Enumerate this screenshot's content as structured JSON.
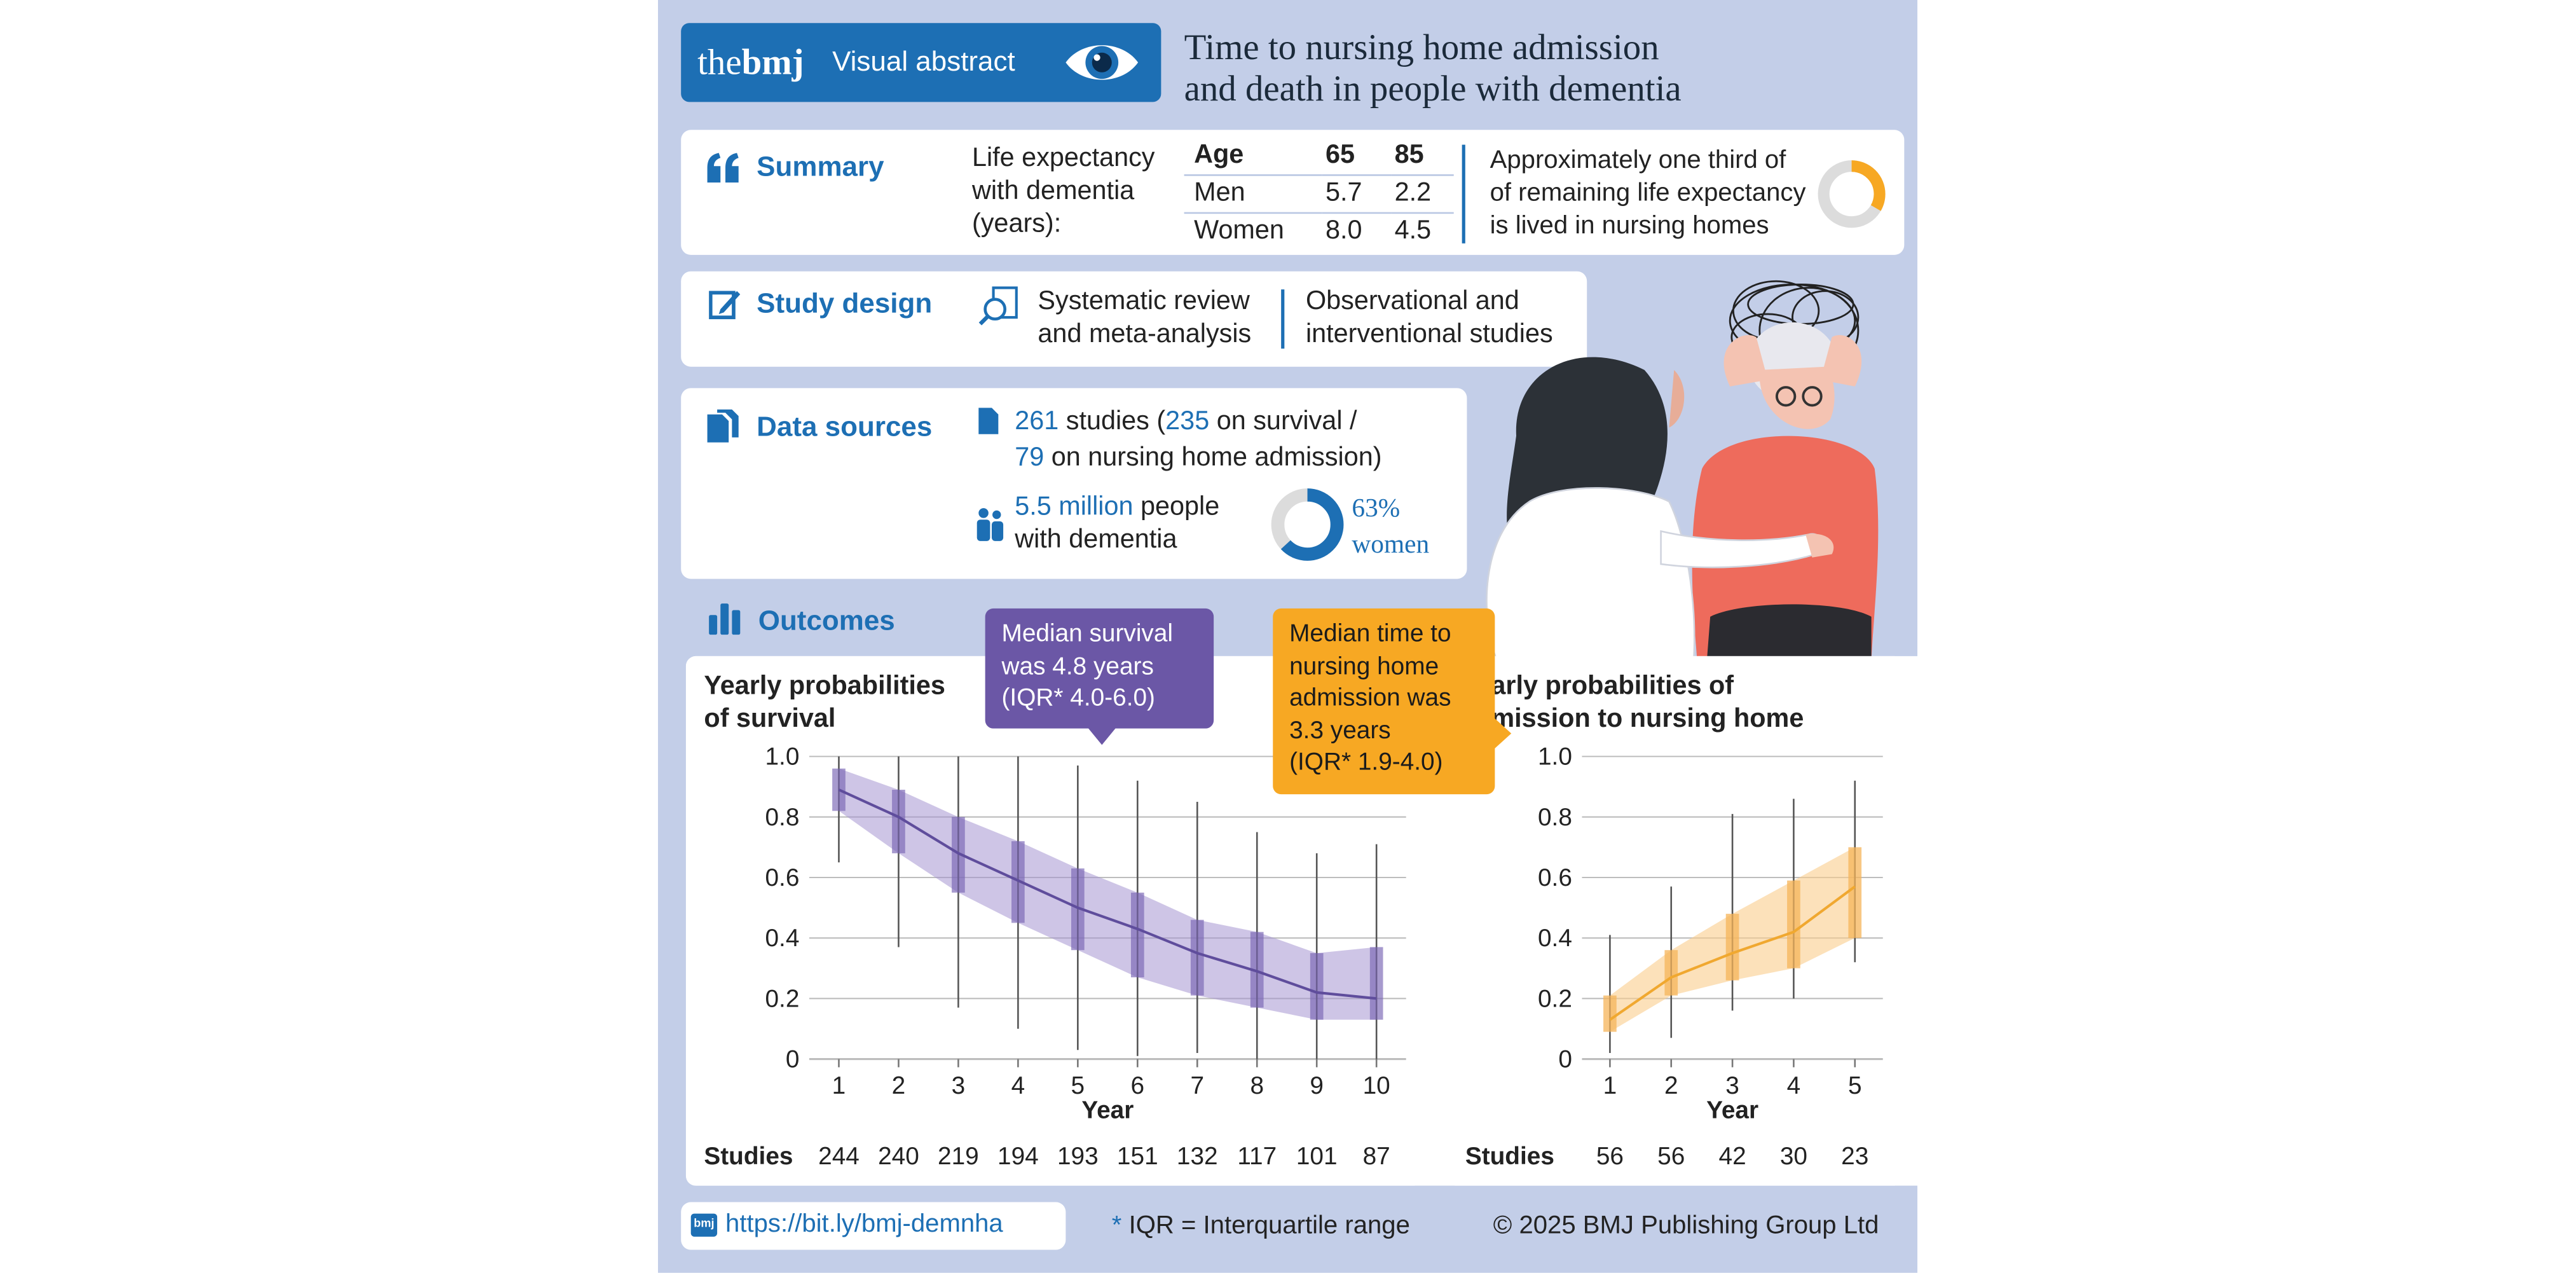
{
  "header": {
    "brand_the": "the",
    "brand_bmj": "bmj",
    "brand_subtitle": "Visual abstract",
    "title_line1": "Time to nursing home admission",
    "title_line2": "and death in people with dementia"
  },
  "summary": {
    "heading": "Summary",
    "life_line1": "Life expectancy",
    "life_line2": "with dementia",
    "life_line3": "(years):",
    "table": {
      "headers": [
        "Age",
        "65",
        "85"
      ],
      "rows": [
        [
          "Men",
          "5.7",
          "2.2"
        ],
        [
          "Women",
          "8.0",
          "4.5"
        ]
      ]
    },
    "note_line1": "Approximately one third of",
    "note_line2": "of remaining life expectancy",
    "note_line3": "is lived in nursing homes",
    "note_fraction": 0.333
  },
  "study_design": {
    "heading": "Study design",
    "item1_line1": "Systematic review",
    "item1_line2": "and meta-analysis",
    "item2_line1": "Observational and",
    "item2_line2": "interventional studies"
  },
  "data_sources": {
    "heading": "Data sources",
    "studies_count": "261",
    "studies_text": " studies (",
    "survival_count": "235",
    "survival_text": " on survival /",
    "admission_count": "79",
    "admission_text": " on nursing home admission)",
    "people_count": "5.5 million",
    "people_text": " people",
    "people_line2": "with dementia",
    "women_percent_label": "63%",
    "women_label": "women",
    "women_fraction": 0.63
  },
  "outcomes": {
    "heading": "Outcomes",
    "bubble_survival_line1": "Median survival",
    "bubble_survival_line2": "was 4.8 years",
    "bubble_survival_line3": "(IQR* 4.0-6.0)",
    "bubble_admission_line1": "Median time to",
    "bubble_admission_line2": "nursing home",
    "bubble_admission_line3": "admission was",
    "bubble_admission_line4": "3.3 years",
    "bubble_admission_line5": "(IQR* 1.9-4.0)",
    "studies_label": "Studies"
  },
  "chart_data": [
    {
      "type": "line",
      "title_line1": "Yearly probabilities",
      "title_line2": "of survival",
      "xlabel": "Year",
      "ylabel": "",
      "ylim": [
        0,
        1.0
      ],
      "yticks": [
        "0",
        "0.2",
        "0.4",
        "0.6",
        "0.8",
        "1.0"
      ],
      "x": [
        1,
        2,
        3,
        4,
        5,
        6,
        7,
        8,
        9,
        10
      ],
      "series": [
        {
          "values": [
            0.89,
            0.8,
            0.68,
            0.59,
            0.5,
            0.43,
            0.35,
            0.29,
            0.22,
            0.2
          ],
          "band_low": [
            0.82,
            0.68,
            0.55,
            0.45,
            0.36,
            0.27,
            0.21,
            0.17,
            0.13,
            0.13
          ],
          "band_high": [
            0.96,
            0.89,
            0.8,
            0.72,
            0.63,
            0.55,
            0.46,
            0.42,
            0.35,
            0.37
          ],
          "range_low": [
            0.65,
            0.37,
            0.17,
            0.1,
            0.03,
            0.01,
            0.02,
            0.0,
            0.0,
            0.0
          ],
          "range_high": [
            1.0,
            1.0,
            1.0,
            1.0,
            0.97,
            0.92,
            0.85,
            0.75,
            0.68,
            0.71
          ],
          "color": "#6b57a6"
        }
      ],
      "studies": [
        "244",
        "240",
        "219",
        "194",
        "193",
        "151",
        "132",
        "117",
        "101",
        "87"
      ]
    },
    {
      "type": "line",
      "title_line1": "Yearly probabilities of",
      "title_line2": "admission to nursing home",
      "xlabel": "Year",
      "ylabel": "",
      "ylim": [
        0,
        1.0
      ],
      "yticks": [
        "0",
        "0.2",
        "0.4",
        "0.6",
        "0.8",
        "1.0"
      ],
      "x": [
        1,
        2,
        3,
        4,
        5
      ],
      "series": [
        {
          "values": [
            0.13,
            0.27,
            0.35,
            0.42,
            0.57
          ],
          "band_low": [
            0.09,
            0.21,
            0.26,
            0.3,
            0.4
          ],
          "band_high": [
            0.21,
            0.36,
            0.48,
            0.59,
            0.7
          ],
          "range_low": [
            0.02,
            0.07,
            0.16,
            0.2,
            0.32
          ],
          "range_high": [
            0.41,
            0.57,
            0.81,
            0.86,
            0.92
          ],
          "color": "#f0a830"
        }
      ],
      "studies": [
        "56",
        "56",
        "42",
        "30",
        "23"
      ]
    }
  ],
  "footer": {
    "link": "https://bit.ly/bmj-demnha",
    "footnote_star": "*",
    "footnote": " IQR = Interquartile range",
    "copyright": "© 2025 BMJ Publishing Group Ltd"
  },
  "colors": {
    "background": "#c3cee8",
    "brand_blue": "#1d6fb4",
    "survival_purple": "#6b57a6",
    "admission_orange": "#f7a823"
  }
}
